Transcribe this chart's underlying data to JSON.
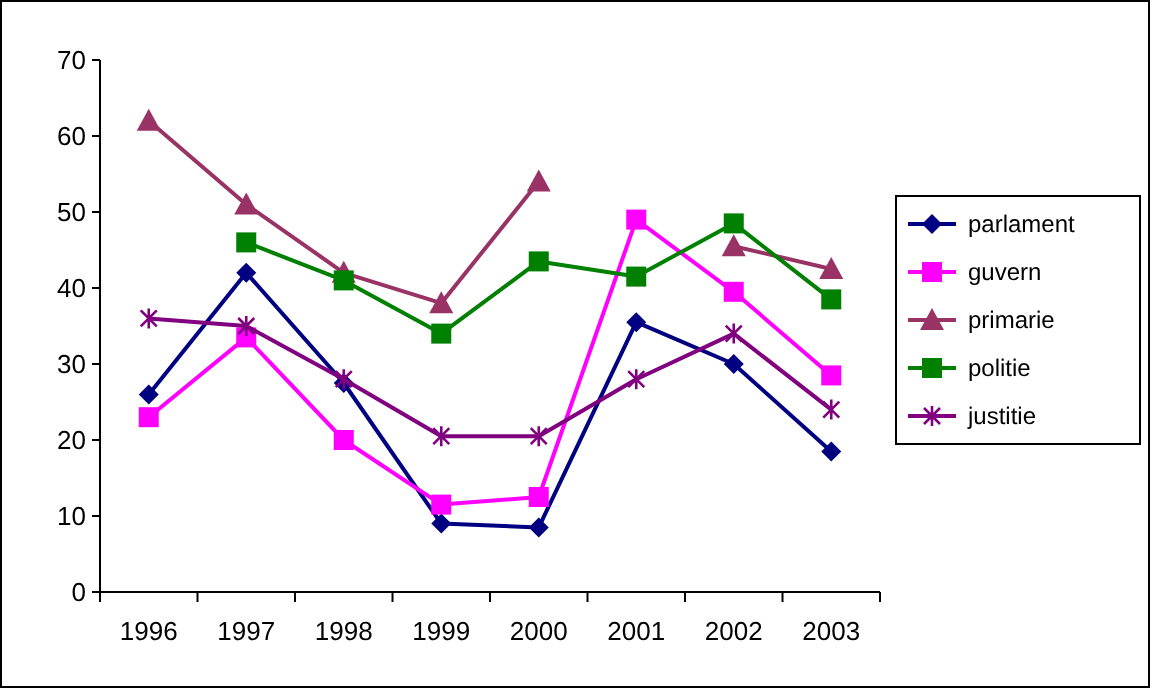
{
  "chart_data": {
    "type": "line",
    "categories": [
      "1996",
      "1997",
      "1998",
      "1999",
      "2000",
      "2001",
      "2002",
      "2003"
    ],
    "ylim": [
      0,
      70
    ],
    "yticks": [
      0,
      10,
      20,
      30,
      40,
      50,
      60,
      70
    ],
    "grid": false,
    "legend": "right",
    "line_style": "solid",
    "series": [
      {
        "name": "parlament",
        "color": "#000080",
        "marker": "diamond",
        "values": [
          26,
          42,
          27.5,
          9,
          8.5,
          35.5,
          30,
          18.5
        ]
      },
      {
        "name": "guvern",
        "color": "#ff00ff",
        "marker": "square",
        "values": [
          23,
          33.5,
          20,
          11.5,
          12.5,
          49,
          39.5,
          28.5
        ]
      },
      {
        "name": "primarie",
        "color": "#993366",
        "marker": "triangle",
        "values": [
          62,
          51,
          42,
          38,
          54,
          null,
          45.5,
          42.5
        ]
      },
      {
        "name": "politie",
        "color": "#008000",
        "marker": "square",
        "values": [
          null,
          46,
          41,
          34,
          43.5,
          41.5,
          48.5,
          38.5
        ]
      },
      {
        "name": "justitie",
        "color": "#800080",
        "marker": "cross",
        "values": [
          36,
          35,
          28,
          20.5,
          20.5,
          28,
          34,
          24
        ]
      }
    ]
  }
}
